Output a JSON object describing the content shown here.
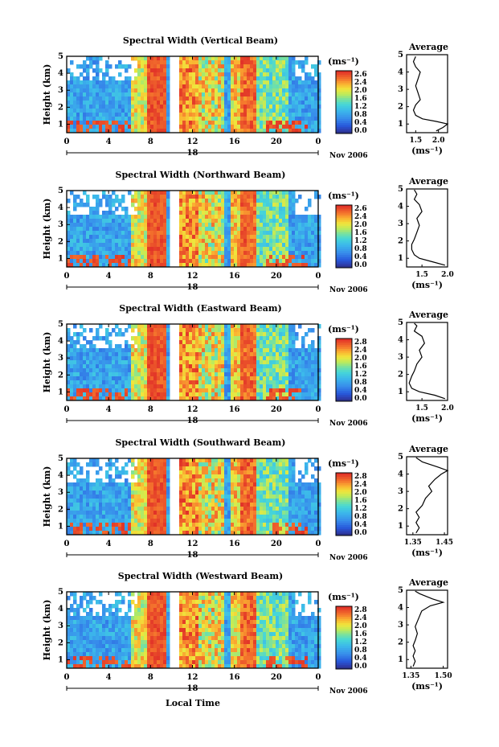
{
  "figure": {
    "xlabel": "Local Time",
    "date_label": "Nov 2006",
    "day_label": "18",
    "colorbar_unit": "(ms⁻¹)",
    "avg_title": "Average",
    "avg_unit": "(ms⁻¹)",
    "ylabel": "Height (km)"
  },
  "chart_data": [
    {
      "type": "heatmap",
      "title": "Spectral Width (Vertical Beam)",
      "x_ticks": [
        "0",
        "4",
        "8",
        "12",
        "16",
        "20",
        "0"
      ],
      "y_ticks": [
        "1",
        "2",
        "3",
        "4",
        "5"
      ],
      "xlim": [
        0,
        24
      ],
      "ylim": [
        0.5,
        5
      ],
      "colorbar_ticks": [
        "2.6",
        "2.4",
        "2.0",
        "1.6",
        "1.2",
        "0.8",
        "0.4",
        "0.0"
      ],
      "colorbar_range": [
        0.0,
        2.8
      ],
      "avg": {
        "x_ticks": [
          "1.5",
          "2.0"
        ],
        "xlim": [
          1.3,
          2.2
        ],
        "profile": [
          [
            1.95,
            0.6
          ],
          [
            2.1,
            0.8
          ],
          [
            2.2,
            1.0
          ],
          [
            1.95,
            1.15
          ],
          [
            1.65,
            1.3
          ],
          [
            1.5,
            1.5
          ],
          [
            1.45,
            1.8
          ],
          [
            1.5,
            2.1
          ],
          [
            1.6,
            2.4
          ],
          [
            1.55,
            2.8
          ],
          [
            1.5,
            3.2
          ],
          [
            1.55,
            3.6
          ],
          [
            1.6,
            4.0
          ],
          [
            1.5,
            4.3
          ],
          [
            1.45,
            4.6
          ],
          [
            1.5,
            4.9
          ]
        ]
      }
    },
    {
      "type": "heatmap",
      "title": "Spectral Width (Northward Beam)",
      "x_ticks": [
        "0",
        "4",
        "8",
        "12",
        "16",
        "20",
        "0"
      ],
      "y_ticks": [
        "1",
        "2",
        "3",
        "4",
        "5"
      ],
      "xlim": [
        0,
        24
      ],
      "ylim": [
        0.5,
        5
      ],
      "colorbar_ticks": [
        "2.6",
        "2.4",
        "2.0",
        "1.6",
        "1.2",
        "0.8",
        "0.4",
        "0.0"
      ],
      "colorbar_range": [
        0.0,
        2.8
      ],
      "avg": {
        "x_ticks": [
          "1.5",
          "2.0"
        ],
        "xlim": [
          1.2,
          2.0
        ],
        "profile": [
          [
            1.95,
            0.6
          ],
          [
            1.7,
            0.8
          ],
          [
            1.45,
            1.0
          ],
          [
            1.35,
            1.2
          ],
          [
            1.3,
            1.5
          ],
          [
            1.3,
            1.8
          ],
          [
            1.35,
            2.1
          ],
          [
            1.4,
            2.5
          ],
          [
            1.45,
            2.9
          ],
          [
            1.4,
            3.3
          ],
          [
            1.5,
            3.7
          ],
          [
            1.45,
            4.1
          ],
          [
            1.35,
            4.4
          ],
          [
            1.4,
            4.7
          ],
          [
            1.35,
            4.95
          ]
        ]
      }
    },
    {
      "type": "heatmap",
      "title": "Spectral Width (Eastward Beam)",
      "x_ticks": [
        "0",
        "4",
        "8",
        "12",
        "16",
        "20",
        "0"
      ],
      "y_ticks": [
        "1",
        "2",
        "3",
        "4",
        "5"
      ],
      "xlim": [
        0,
        24
      ],
      "ylim": [
        0.5,
        5
      ],
      "colorbar_ticks": [
        "2.8",
        "2.4",
        "2.0",
        "1.6",
        "1.2",
        "0.8",
        "0.4",
        "0.0"
      ],
      "colorbar_range": [
        0.0,
        2.8
      ],
      "avg": {
        "x_ticks": [
          "1.5",
          "2.0"
        ],
        "xlim": [
          1.2,
          2.0
        ],
        "profile": [
          [
            1.95,
            0.6
          ],
          [
            1.75,
            0.8
          ],
          [
            1.45,
            1.0
          ],
          [
            1.3,
            1.2
          ],
          [
            1.25,
            1.5
          ],
          [
            1.3,
            1.9
          ],
          [
            1.35,
            2.2
          ],
          [
            1.4,
            2.6
          ],
          [
            1.5,
            3.0
          ],
          [
            1.45,
            3.4
          ],
          [
            1.55,
            3.8
          ],
          [
            1.5,
            4.2
          ],
          [
            1.35,
            4.5
          ],
          [
            1.4,
            4.8
          ],
          [
            1.35,
            4.95
          ]
        ]
      }
    },
    {
      "type": "heatmap",
      "title": "Spectral Width (Southward Beam)",
      "x_ticks": [
        "0",
        "4",
        "8",
        "12",
        "16",
        "20",
        "0"
      ],
      "y_ticks": [
        "1",
        "2",
        "3",
        "4",
        "5"
      ],
      "xlim": [
        0,
        24
      ],
      "ylim": [
        0.5,
        5
      ],
      "colorbar_ticks": [
        "2.8",
        "2.4",
        "2.0",
        "1.6",
        "1.2",
        "0.8",
        "0.4",
        "0.0"
      ],
      "colorbar_range": [
        0.0,
        2.8
      ],
      "avg": {
        "x_ticks": [
          "1.35",
          "1.45"
        ],
        "xlim": [
          1.33,
          1.46
        ],
        "profile": [
          [
            1.36,
            0.6
          ],
          [
            1.37,
            0.9
          ],
          [
            1.36,
            1.2
          ],
          [
            1.37,
            1.5
          ],
          [
            1.36,
            1.8
          ],
          [
            1.38,
            2.2
          ],
          [
            1.39,
            2.6
          ],
          [
            1.41,
            3.0
          ],
          [
            1.4,
            3.3
          ],
          [
            1.42,
            3.7
          ],
          [
            1.44,
            4.0
          ],
          [
            1.46,
            4.2
          ],
          [
            1.43,
            4.4
          ],
          [
            1.38,
            4.7
          ],
          [
            1.36,
            4.95
          ]
        ]
      }
    },
    {
      "type": "heatmap",
      "title": "Spectral Width (Westward Beam)",
      "x_ticks": [
        "0",
        "4",
        "8",
        "12",
        "16",
        "20",
        "0"
      ],
      "y_ticks": [
        "1",
        "2",
        "3",
        "4",
        "5"
      ],
      "xlim": [
        0,
        24
      ],
      "ylim": [
        0.5,
        5
      ],
      "colorbar_ticks": [
        "2.8",
        "2.4",
        "2.0",
        "1.6",
        "1.2",
        "0.8",
        "0.4",
        "0.0"
      ],
      "colorbar_range": [
        0.0,
        2.8
      ],
      "avg": {
        "x_ticks": [
          "1.35",
          "1.50"
        ],
        "xlim": [
          1.33,
          1.52
        ],
        "profile": [
          [
            1.36,
            0.6
          ],
          [
            1.37,
            0.9
          ],
          [
            1.36,
            1.2
          ],
          [
            1.37,
            1.5
          ],
          [
            1.36,
            1.8
          ],
          [
            1.37,
            2.1
          ],
          [
            1.38,
            2.5
          ],
          [
            1.37,
            2.9
          ],
          [
            1.38,
            3.2
          ],
          [
            1.39,
            3.5
          ],
          [
            1.4,
            3.8
          ],
          [
            1.44,
            4.1
          ],
          [
            1.5,
            4.3
          ],
          [
            1.45,
            4.5
          ],
          [
            1.39,
            4.8
          ],
          [
            1.37,
            4.95
          ]
        ]
      }
    }
  ]
}
